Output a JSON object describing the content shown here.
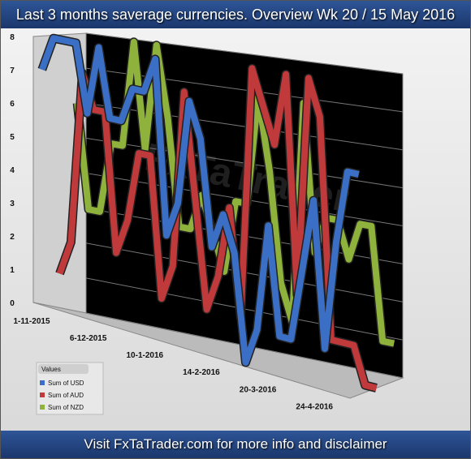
{
  "title": "Last 3 months saverage currencies. Overview Wk 20 / 15 May 2016",
  "footer": "Visit FxTaTrader.com for more info and disclaimer",
  "chart_data": {
    "type": "line",
    "watermark": "FxTaTrader",
    "legend_title": "Values",
    "categories": [
      "1-11-2015",
      null,
      null,
      null,
      null,
      "6-12-2015",
      null,
      null,
      null,
      null,
      "10-1-2016",
      null,
      null,
      null,
      null,
      "14-2-2016",
      null,
      null,
      null,
      null,
      "20-3-2016",
      null,
      null,
      null,
      null,
      "24-4-2016",
      null,
      null,
      null
    ],
    "series": [
      {
        "name": "Sum of USD",
        "color": "#3b6fc6",
        "values": [
          7,
          8,
          8,
          8,
          6,
          8,
          6,
          6,
          7,
          7,
          8,
          3,
          4,
          7,
          6,
          3,
          4,
          3,
          0,
          1,
          4,
          1,
          1,
          3,
          5,
          1,
          4,
          6,
          6
        ]
      },
      {
        "name": "Sum of AUD",
        "color": "#c0393b",
        "values": [
          1,
          2,
          7,
          6,
          6,
          2,
          3,
          5,
          5,
          1,
          2,
          7,
          4,
          1,
          2,
          4,
          1,
          8,
          7,
          6,
          8,
          2,
          8,
          7,
          1,
          1,
          1,
          0,
          0
        ]
      },
      {
        "name": "Sum of NZD",
        "color": "#8fb23c",
        "values": [
          6,
          3,
          3,
          5,
          5,
          8,
          5,
          8,
          6,
          3,
          3,
          4,
          3,
          2,
          4,
          4,
          7,
          5,
          2,
          1,
          7,
          3,
          4,
          4,
          3,
          4,
          4,
          1,
          1
        ]
      }
    ],
    "ylim": [
      0,
      8
    ],
    "yticks": [
      0,
      1,
      2,
      3,
      4,
      5,
      6,
      7,
      8
    ],
    "grid": true,
    "legend": "bottom-left"
  }
}
